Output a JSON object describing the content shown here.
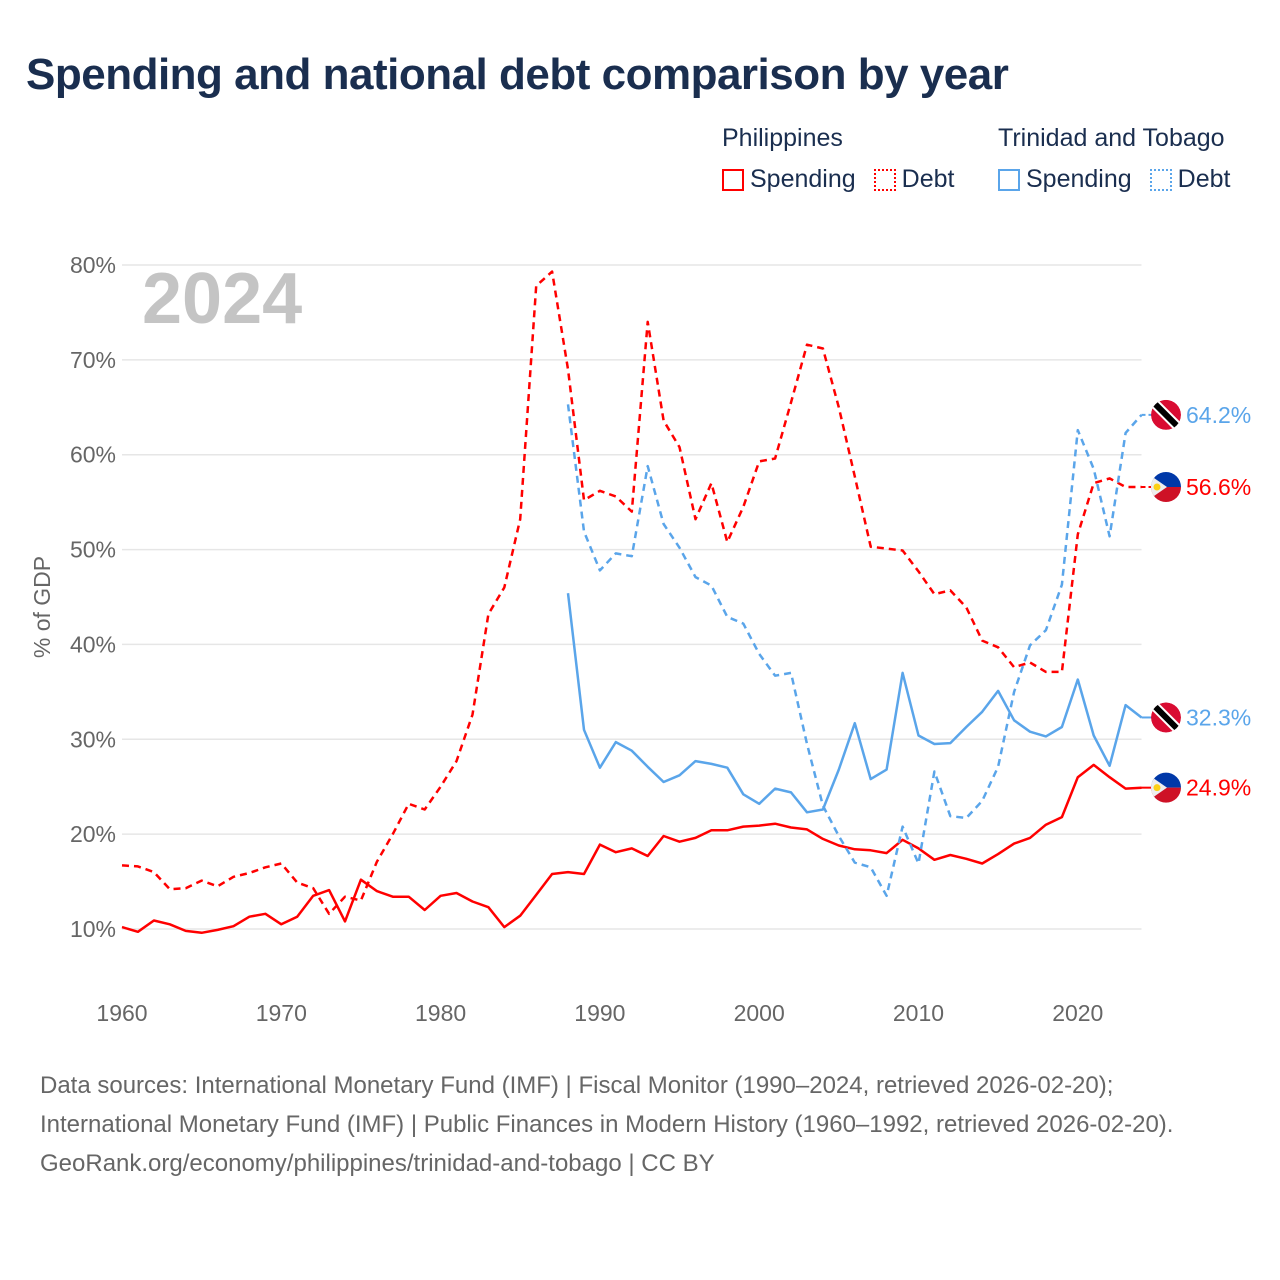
{
  "title": "Spending and national debt comparison by year",
  "legend": [
    {
      "country": "Philippines",
      "color": "#ff0000",
      "items": [
        "Spending",
        "Debt"
      ]
    },
    {
      "country": "Trinidad and Tobago",
      "color": "#5aa5ea",
      "items": [
        "Spending",
        "Debt"
      ]
    }
  ],
  "footer": {
    "sources": "Data sources: International Monetary Fund (IMF) | Fiscal Monitor (1990–2024, retrieved 2026-02-20); International Monetary Fund (IMF) | Public Finances in Modern History (1960–1992, retrieved 2026-02-20).",
    "link": "GeoRank.org/economy/philippines/trinidad-and-tobago | CC BY"
  },
  "chart_data": {
    "type": "line",
    "title": "Spending and national debt comparison by year",
    "watermark_year": "2024",
    "ylabel": "% of GDP",
    "xlabel": "",
    "xlim": [
      1960,
      2024
    ],
    "ylim": [
      10,
      80
    ],
    "x_ticks": [
      "1960",
      "1970",
      "1980",
      "1990",
      "2000",
      "2010",
      "2020"
    ],
    "y_ticks": [
      "10%",
      "20%",
      "30%",
      "40%",
      "50%",
      "60%",
      "70%",
      "80%"
    ],
    "grid": true,
    "series": [
      {
        "name": "Philippines Spending",
        "color": "#ff0000",
        "dashed": false,
        "start": 1960,
        "end_label": "24.9%",
        "flag": "philippines-flag",
        "values": [
          10.2,
          9.7,
          10.9,
          10.5,
          9.8,
          9.6,
          9.9,
          10.3,
          11.3,
          11.6,
          10.5,
          11.3,
          13.5,
          14.1,
          10.8,
          15.2,
          14.0,
          13.4,
          13.4,
          12.0,
          13.5,
          13.8,
          12.9,
          12.3,
          10.2,
          11.4,
          13.6,
          15.8,
          16.0,
          15.8,
          18.9,
          18.1,
          18.5,
          17.7,
          19.8,
          19.2,
          19.6,
          20.4,
          20.4,
          20.8,
          20.9,
          21.1,
          20.7,
          20.5,
          19.5,
          18.8,
          18.4,
          18.3,
          18.0,
          19.4,
          18.5,
          17.3,
          17.8,
          17.4,
          16.9,
          17.9,
          19.0,
          19.6,
          21.0,
          21.8,
          26.0,
          27.3,
          26.0,
          24.8,
          24.9
        ]
      },
      {
        "name": "Philippines Debt",
        "color": "#ff0000",
        "dashed": true,
        "start": 1960,
        "end_label": "56.6%",
        "flag": "philippines-flag",
        "values": [
          16.7,
          16.6,
          16.0,
          14.2,
          14.3,
          15.1,
          14.5,
          15.5,
          15.9,
          16.5,
          16.9,
          14.9,
          14.3,
          11.6,
          13.4,
          13.0,
          17.1,
          20.0,
          23.2,
          22.6,
          25.0,
          27.7,
          32.6,
          43.2,
          46.0,
          53.2,
          77.8,
          79.3,
          69.0,
          55.2,
          56.2,
          55.6,
          54.0,
          74.0,
          63.6,
          60.8,
          53.2,
          57.0,
          50.8,
          54.5,
          59.3,
          59.6,
          65.5,
          71.6,
          71.2,
          65.0,
          57.7,
          50.3,
          50.1,
          49.9,
          47.7,
          45.3,
          45.7,
          43.9,
          40.4,
          39.7,
          37.6,
          38.1,
          37.1,
          37.1,
          51.6,
          57.0,
          57.5,
          56.6,
          56.6
        ]
      },
      {
        "name": "Trinidad and Tobago Spending",
        "color": "#5aa5ea",
        "dashed": false,
        "start": 1988,
        "end_label": "32.3%",
        "flag": "trinidad-flag",
        "values": [
          45.4,
          31.0,
          27.0,
          29.7,
          28.8,
          27.1,
          25.5,
          26.2,
          27.7,
          27.4,
          27.0,
          24.2,
          23.2,
          24.8,
          24.4,
          22.3,
          22.6,
          26.8,
          31.7,
          25.8,
          26.8,
          37.0,
          30.4,
          29.5,
          29.6,
          31.3,
          32.9,
          35.1,
          32.0,
          30.8,
          30.3,
          31.3,
          36.3,
          30.4,
          27.2,
          33.6,
          32.3
        ]
      },
      {
        "name": "Trinidad and Tobago Debt",
        "color": "#5aa5ea",
        "dashed": true,
        "start": 1988,
        "end_label": "64.2%",
        "flag": "trinidad-flag",
        "values": [
          65.3,
          51.9,
          47.8,
          49.6,
          49.3,
          58.8,
          52.7,
          50.2,
          47.1,
          46.2,
          42.9,
          42.2,
          39.0,
          36.7,
          37.0,
          29.5,
          23.0,
          19.8,
          17.0,
          16.5,
          13.5,
          20.8,
          16.9,
          26.6,
          21.9,
          21.7,
          23.5,
          27.1,
          35.0,
          39.9,
          41.5,
          46.3,
          62.6,
          58.5,
          51.4,
          62.3,
          64.2
        ]
      }
    ]
  }
}
